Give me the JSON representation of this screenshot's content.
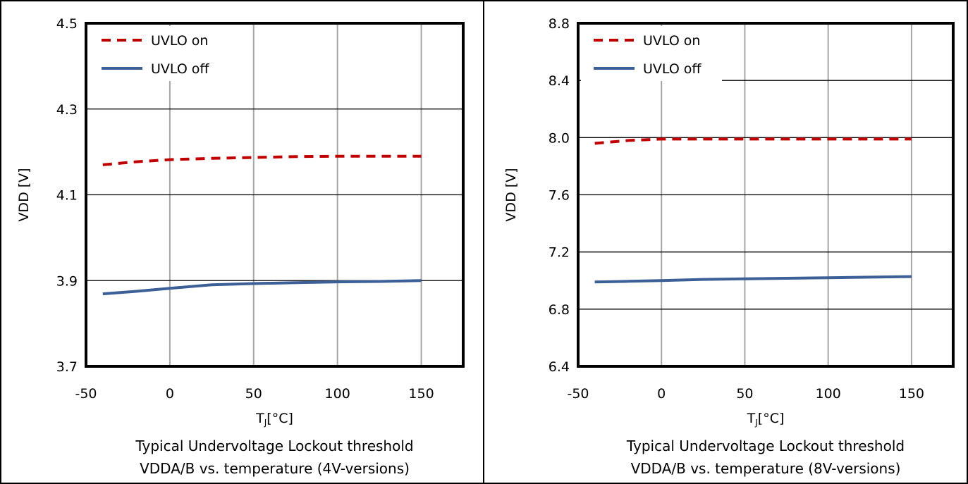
{
  "chart_data": [
    {
      "type": "line",
      "ylabel": "VDD [V]",
      "xlabel_main": "T",
      "xlabel_sub": "J",
      "xlabel_unit": "[°C]",
      "caption_line1": "Typical Undervoltage Lockout threshold",
      "caption_line2": "VDDA/B vs. temperature (4V-versions)",
      "xlim": [
        -50,
        175
      ],
      "ylim": [
        3.7,
        4.5
      ],
      "x_ticks": [
        -50,
        0,
        50,
        100,
        150
      ],
      "x_tick_labels": [
        "-50",
        "0",
        "50",
        "100",
        "150"
      ],
      "y_ticks": [
        3.7,
        3.9,
        4.1,
        4.3,
        4.5
      ],
      "y_tick_labels": [
        "3.7",
        "3.9",
        "4.1",
        "4.3",
        "4.5"
      ],
      "grid": true,
      "legend_position": "top-left",
      "series": [
        {
          "name": "UVLO on",
          "color": "#c00000",
          "style": "dashed",
          "x": [
            -40,
            -20,
            0,
            25,
            50,
            75,
            100,
            125,
            150
          ],
          "y": [
            4.17,
            4.177,
            4.182,
            4.185,
            4.187,
            4.189,
            4.19,
            4.19,
            4.19
          ]
        },
        {
          "name": "UVLO off",
          "color": "#3c5f97",
          "style": "solid",
          "x": [
            -40,
            -20,
            0,
            25,
            50,
            75,
            100,
            125,
            150
          ],
          "y": [
            3.869,
            3.875,
            3.882,
            3.89,
            3.893,
            3.895,
            3.897,
            3.898,
            3.9
          ]
        }
      ]
    },
    {
      "type": "line",
      "ylabel": "VDD [V]",
      "xlabel_main": "T",
      "xlabel_sub": "J",
      "xlabel_unit": "[°C]",
      "caption_line1": "Typical Undervoltage Lockout threshold",
      "caption_line2": "VDDA/B vs. temperature (8V-versions)",
      "xlim": [
        -50,
        175
      ],
      "ylim": [
        6.4,
        8.8
      ],
      "x_ticks": [
        -50,
        0,
        50,
        100,
        150
      ],
      "x_tick_labels": [
        "-50",
        "0",
        "50",
        "100",
        "150"
      ],
      "y_ticks": [
        6.4,
        6.8,
        7.2,
        7.6,
        8.0,
        8.4,
        8.8
      ],
      "y_tick_labels": [
        "6.4",
        "6.8",
        "7.2",
        "7.6",
        "8.0",
        "8.4",
        "8.8"
      ],
      "grid": true,
      "legend_position": "top-left",
      "series": [
        {
          "name": "UVLO on",
          "color": "#c00000",
          "style": "dashed",
          "x": [
            -40,
            -20,
            0,
            25,
            50,
            75,
            100,
            125,
            150
          ],
          "y": [
            7.96,
            7.98,
            7.99,
            7.99,
            7.99,
            7.99,
            7.99,
            7.99,
            7.99
          ]
        },
        {
          "name": "UVLO off",
          "color": "#3c5f97",
          "style": "solid",
          "x": [
            -40,
            -20,
            0,
            25,
            50,
            75,
            100,
            125,
            150
          ],
          "y": [
            6.99,
            6.995,
            7.0,
            7.008,
            7.012,
            7.016,
            7.02,
            7.024,
            7.028
          ]
        }
      ]
    }
  ]
}
